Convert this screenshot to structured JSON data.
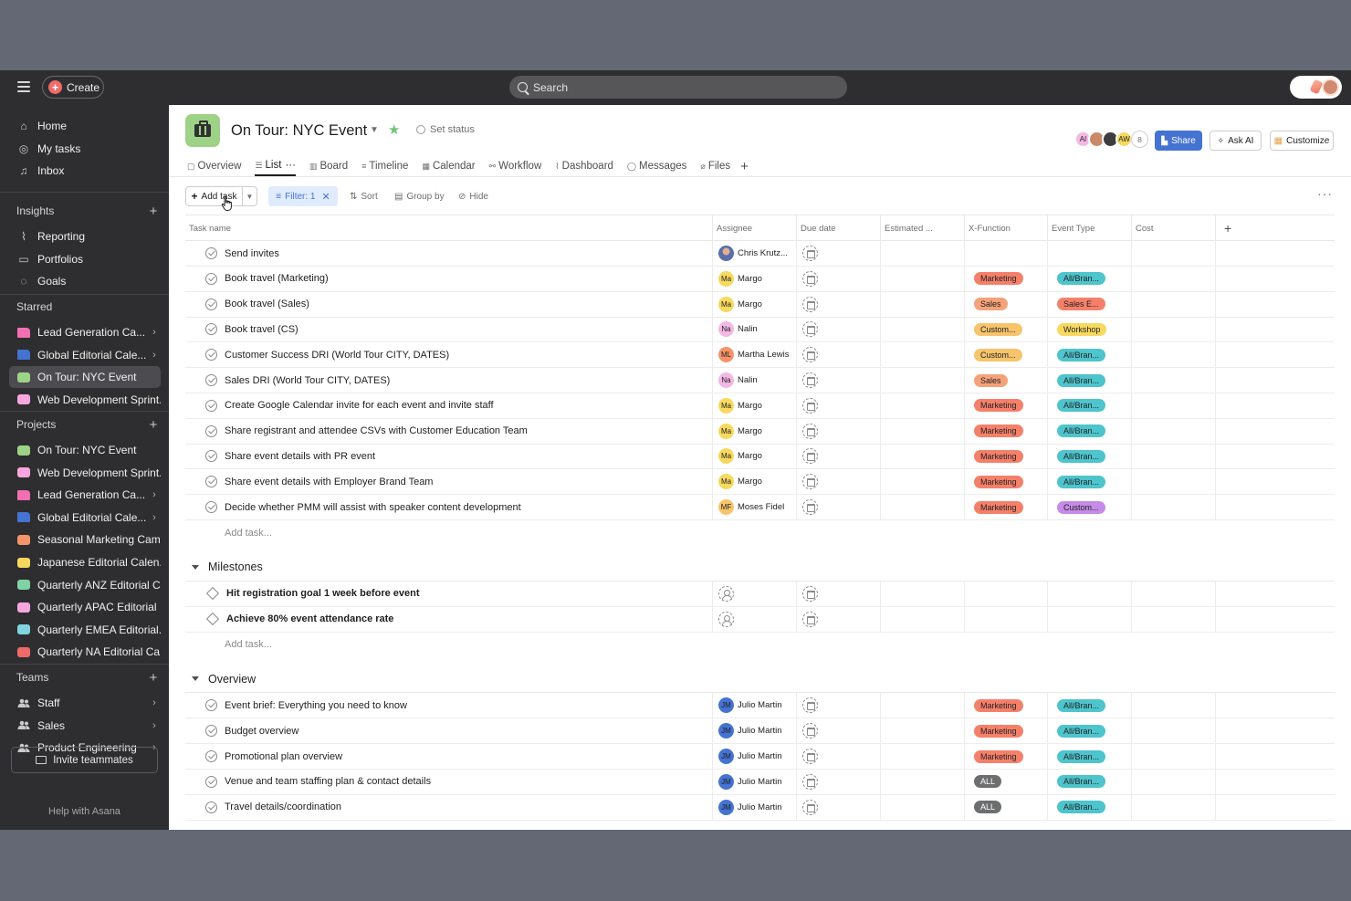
{
  "topbar": {
    "create_label": "Create",
    "search_placeholder": "Search"
  },
  "sidebar": {
    "nav": [
      {
        "label": "Home",
        "icon": "home-icon"
      },
      {
        "label": "My tasks",
        "icon": "check-circle-icon"
      },
      {
        "label": "Inbox",
        "icon": "bell-icon"
      }
    ],
    "insights_label": "Insights",
    "insights": [
      {
        "label": "Reporting",
        "icon": "chart-line-icon"
      },
      {
        "label": "Portfolios",
        "icon": "folder-icon"
      },
      {
        "label": "Goals",
        "icon": "person-icon"
      }
    ],
    "starred_label": "Starred",
    "starred": [
      {
        "label": "Lead Generation Ca...",
        "color": "#f26fb2",
        "type": "folder",
        "chevron": true
      },
      {
        "label": "Global Editorial Cale...",
        "color": "#4573d2",
        "type": "folder",
        "chevron": true
      },
      {
        "label": "On Tour: NYC Event",
        "color": "#9ed287",
        "type": "square",
        "active": true
      },
      {
        "label": "Web Development Sprint...",
        "color": "#f8a6e0",
        "type": "square"
      }
    ],
    "projects_label": "Projects",
    "projects": [
      {
        "label": "On Tour: NYC Event",
        "color": "#9ed287",
        "type": "square"
      },
      {
        "label": "Web Development Sprint...",
        "color": "#f8a6e0",
        "type": "square"
      },
      {
        "label": "Lead Generation Ca...",
        "color": "#f26fb2",
        "type": "folder",
        "chevron": true
      },
      {
        "label": "Global Editorial Cale...",
        "color": "#4573d2",
        "type": "folder",
        "chevron": true
      },
      {
        "label": "Seasonal Marketing Cam...",
        "color": "#f5946a",
        "type": "square"
      },
      {
        "label": "Japanese Editorial Calen...",
        "color": "#f7d95f",
        "type": "square"
      },
      {
        "label": "Quarterly ANZ Editorial C...",
        "color": "#7fd3a5",
        "type": "square"
      },
      {
        "label": "Quarterly APAC Editorial ...",
        "color": "#f8a6e0",
        "type": "square"
      },
      {
        "label": "Quarterly EMEA Editorial...",
        "color": "#7fd6e0",
        "type": "square"
      },
      {
        "label": "Quarterly NA Editorial Ca...",
        "color": "#f06a6a",
        "type": "square"
      }
    ],
    "teams_label": "Teams",
    "teams": [
      {
        "label": "Staff"
      },
      {
        "label": "Sales"
      },
      {
        "label": "Product Engineering"
      }
    ],
    "invite_label": "Invite teammates",
    "help_label": "Help with Asana"
  },
  "project": {
    "title": "On Tour: NYC Event",
    "set_status": "Set status",
    "members": [
      {
        "initials": "AI",
        "color": "#f3b8e4"
      },
      {
        "initials": "",
        "color": "#c98a6a"
      },
      {
        "initials": "",
        "color": "#3d3d40"
      },
      {
        "initials": "AW",
        "color": "#f7d95f"
      }
    ],
    "member_count": "8",
    "share_label": "Share",
    "ask_ai_label": "Ask AI",
    "customize_label": "Customize",
    "tabs": [
      {
        "label": "Overview",
        "icon": "▢"
      },
      {
        "label": "List",
        "icon": "☰",
        "active": true
      },
      {
        "label": "Board",
        "icon": "▥"
      },
      {
        "label": "Timeline",
        "icon": "≡"
      },
      {
        "label": "Calendar",
        "icon": "▦"
      },
      {
        "label": "Workflow",
        "icon": "⚯"
      },
      {
        "label": "Dashboard",
        "icon": "⌇"
      },
      {
        "label": "Messages",
        "icon": "◯"
      },
      {
        "label": "Files",
        "icon": "⌀"
      }
    ]
  },
  "toolbar": {
    "add_task": "Add task",
    "filter": "Filter: 1",
    "sort": "Sort",
    "group_by": "Group by",
    "hide": "Hide"
  },
  "columns": [
    "Task name",
    "Assignee",
    "Due date",
    "Estimated ...",
    "X-Function",
    "Event Type",
    "Cost"
  ],
  "colors": {
    "Marketing": "#f5806a",
    "Sales": "#f5a27a",
    "Custom...": "#f7c46b",
    "ALL": "#6d6e6f",
    "All/Bran...": "#4ec4cc",
    "Sales E...": "#f5806a",
    "Workshop": "#f7d95f",
    "Custom... (purple)": "#c58be6"
  },
  "tasks": [
    {
      "name": "Send invites",
      "assignee": "Chris Krutz...",
      "initials": "",
      "avcolor": "#5a6ea8",
      "xf": "",
      "et": ""
    },
    {
      "name": "Book travel (Marketing)",
      "assignee": "Margo",
      "initials": "Ma",
      "avcolor": "#f7d95f",
      "xf": "Marketing",
      "xfc": "#f5806a",
      "et": "All/Bran...",
      "etc": "#4ec4cc"
    },
    {
      "name": "Book travel (Sales)",
      "assignee": "Margo",
      "initials": "Ma",
      "avcolor": "#f7d95f",
      "xf": "Sales",
      "xfc": "#f5a27a",
      "et": "Sales E...",
      "etc": "#f5806a"
    },
    {
      "name": "Book travel (CS)",
      "assignee": "Nalin",
      "initials": "Na",
      "avcolor": "#f3b8e4",
      "xf": "Custom...",
      "xfc": "#f7c46b",
      "et": "Workshop",
      "etc": "#f7d95f"
    },
    {
      "name": "Customer Success DRI (World Tour CITY, DATES)",
      "assignee": "Martha Lewis",
      "initials": "ML",
      "avcolor": "#f5946a",
      "xf": "Custom...",
      "xfc": "#f7c46b",
      "et": "All/Bran...",
      "etc": "#4ec4cc"
    },
    {
      "name": "Sales DRI (World Tour CITY, DATES)",
      "assignee": "Nalin",
      "initials": "Na",
      "avcolor": "#f3b8e4",
      "xf": "Sales",
      "xfc": "#f5a27a",
      "et": "All/Bran...",
      "etc": "#4ec4cc"
    },
    {
      "name": "Create Google Calendar invite for each event and invite staff",
      "assignee": "Margo",
      "initials": "Ma",
      "avcolor": "#f7d95f",
      "xf": "Marketing",
      "xfc": "#f5806a",
      "et": "All/Bran...",
      "etc": "#4ec4cc"
    },
    {
      "name": "Share registrant and attendee CSVs with Customer Education Team",
      "assignee": "Margo",
      "initials": "Ma",
      "avcolor": "#f7d95f",
      "xf": "Marketing",
      "xfc": "#f5806a",
      "et": "All/Bran...",
      "etc": "#4ec4cc"
    },
    {
      "name": "Share event details with PR event",
      "assignee": "Margo",
      "initials": "Ma",
      "avcolor": "#f7d95f",
      "xf": "Marketing",
      "xfc": "#f5806a",
      "et": "All/Bran...",
      "etc": "#4ec4cc"
    },
    {
      "name": "Share event details with Employer Brand Team",
      "assignee": "Margo",
      "initials": "Ma",
      "avcolor": "#f7d95f",
      "xf": "Marketing",
      "xfc": "#f5806a",
      "et": "All/Bran...",
      "etc": "#4ec4cc"
    },
    {
      "name": "Decide whether PMM will assist with speaker content development",
      "assignee": "Moses Fidel",
      "initials": "MF",
      "avcolor": "#f7c46b",
      "xf": "Marketing",
      "xfc": "#f5806a",
      "et": "Custom...",
      "etc": "#c58be6"
    }
  ],
  "add_task_row": "Add task...",
  "milestones_label": "Milestones",
  "milestones": [
    {
      "name": "Hit registration goal 1 week before event"
    },
    {
      "name": "Achieve 80% event attendance rate"
    }
  ],
  "overview_label": "Overview",
  "overview_tasks": [
    {
      "name": "Event brief: Everything you need to know",
      "assignee": "Julio Martin",
      "initials": "JM",
      "avcolor": "#4573d2",
      "xf": "Marketing",
      "xfc": "#f5806a",
      "et": "All/Bran...",
      "etc": "#4ec4cc"
    },
    {
      "name": "Budget overview",
      "assignee": "Julio Martin",
      "initials": "JM",
      "avcolor": "#4573d2",
      "xf": "Marketing",
      "xfc": "#f5806a",
      "et": "All/Bran...",
      "etc": "#4ec4cc"
    },
    {
      "name": "Promotional plan overview",
      "assignee": "Julio Martin",
      "initials": "JM",
      "avcolor": "#4573d2",
      "xf": "Marketing",
      "xfc": "#f5806a",
      "et": "All/Bran...",
      "etc": "#4ec4cc"
    },
    {
      "name": "Venue and team staffing plan & contact details",
      "assignee": "Julio Martin",
      "initials": "JM",
      "avcolor": "#4573d2",
      "xf": "ALL",
      "xfc": "#6d6e6f",
      "et": "All/Bran...",
      "etc": "#4ec4cc"
    },
    {
      "name": "Travel details/coordination",
      "assignee": "Julio Martin",
      "initials": "JM",
      "avcolor": "#4573d2",
      "xf": "ALL",
      "xfc": "#6d6e6f",
      "et": "All/Bran...",
      "etc": "#4ec4cc"
    }
  ]
}
